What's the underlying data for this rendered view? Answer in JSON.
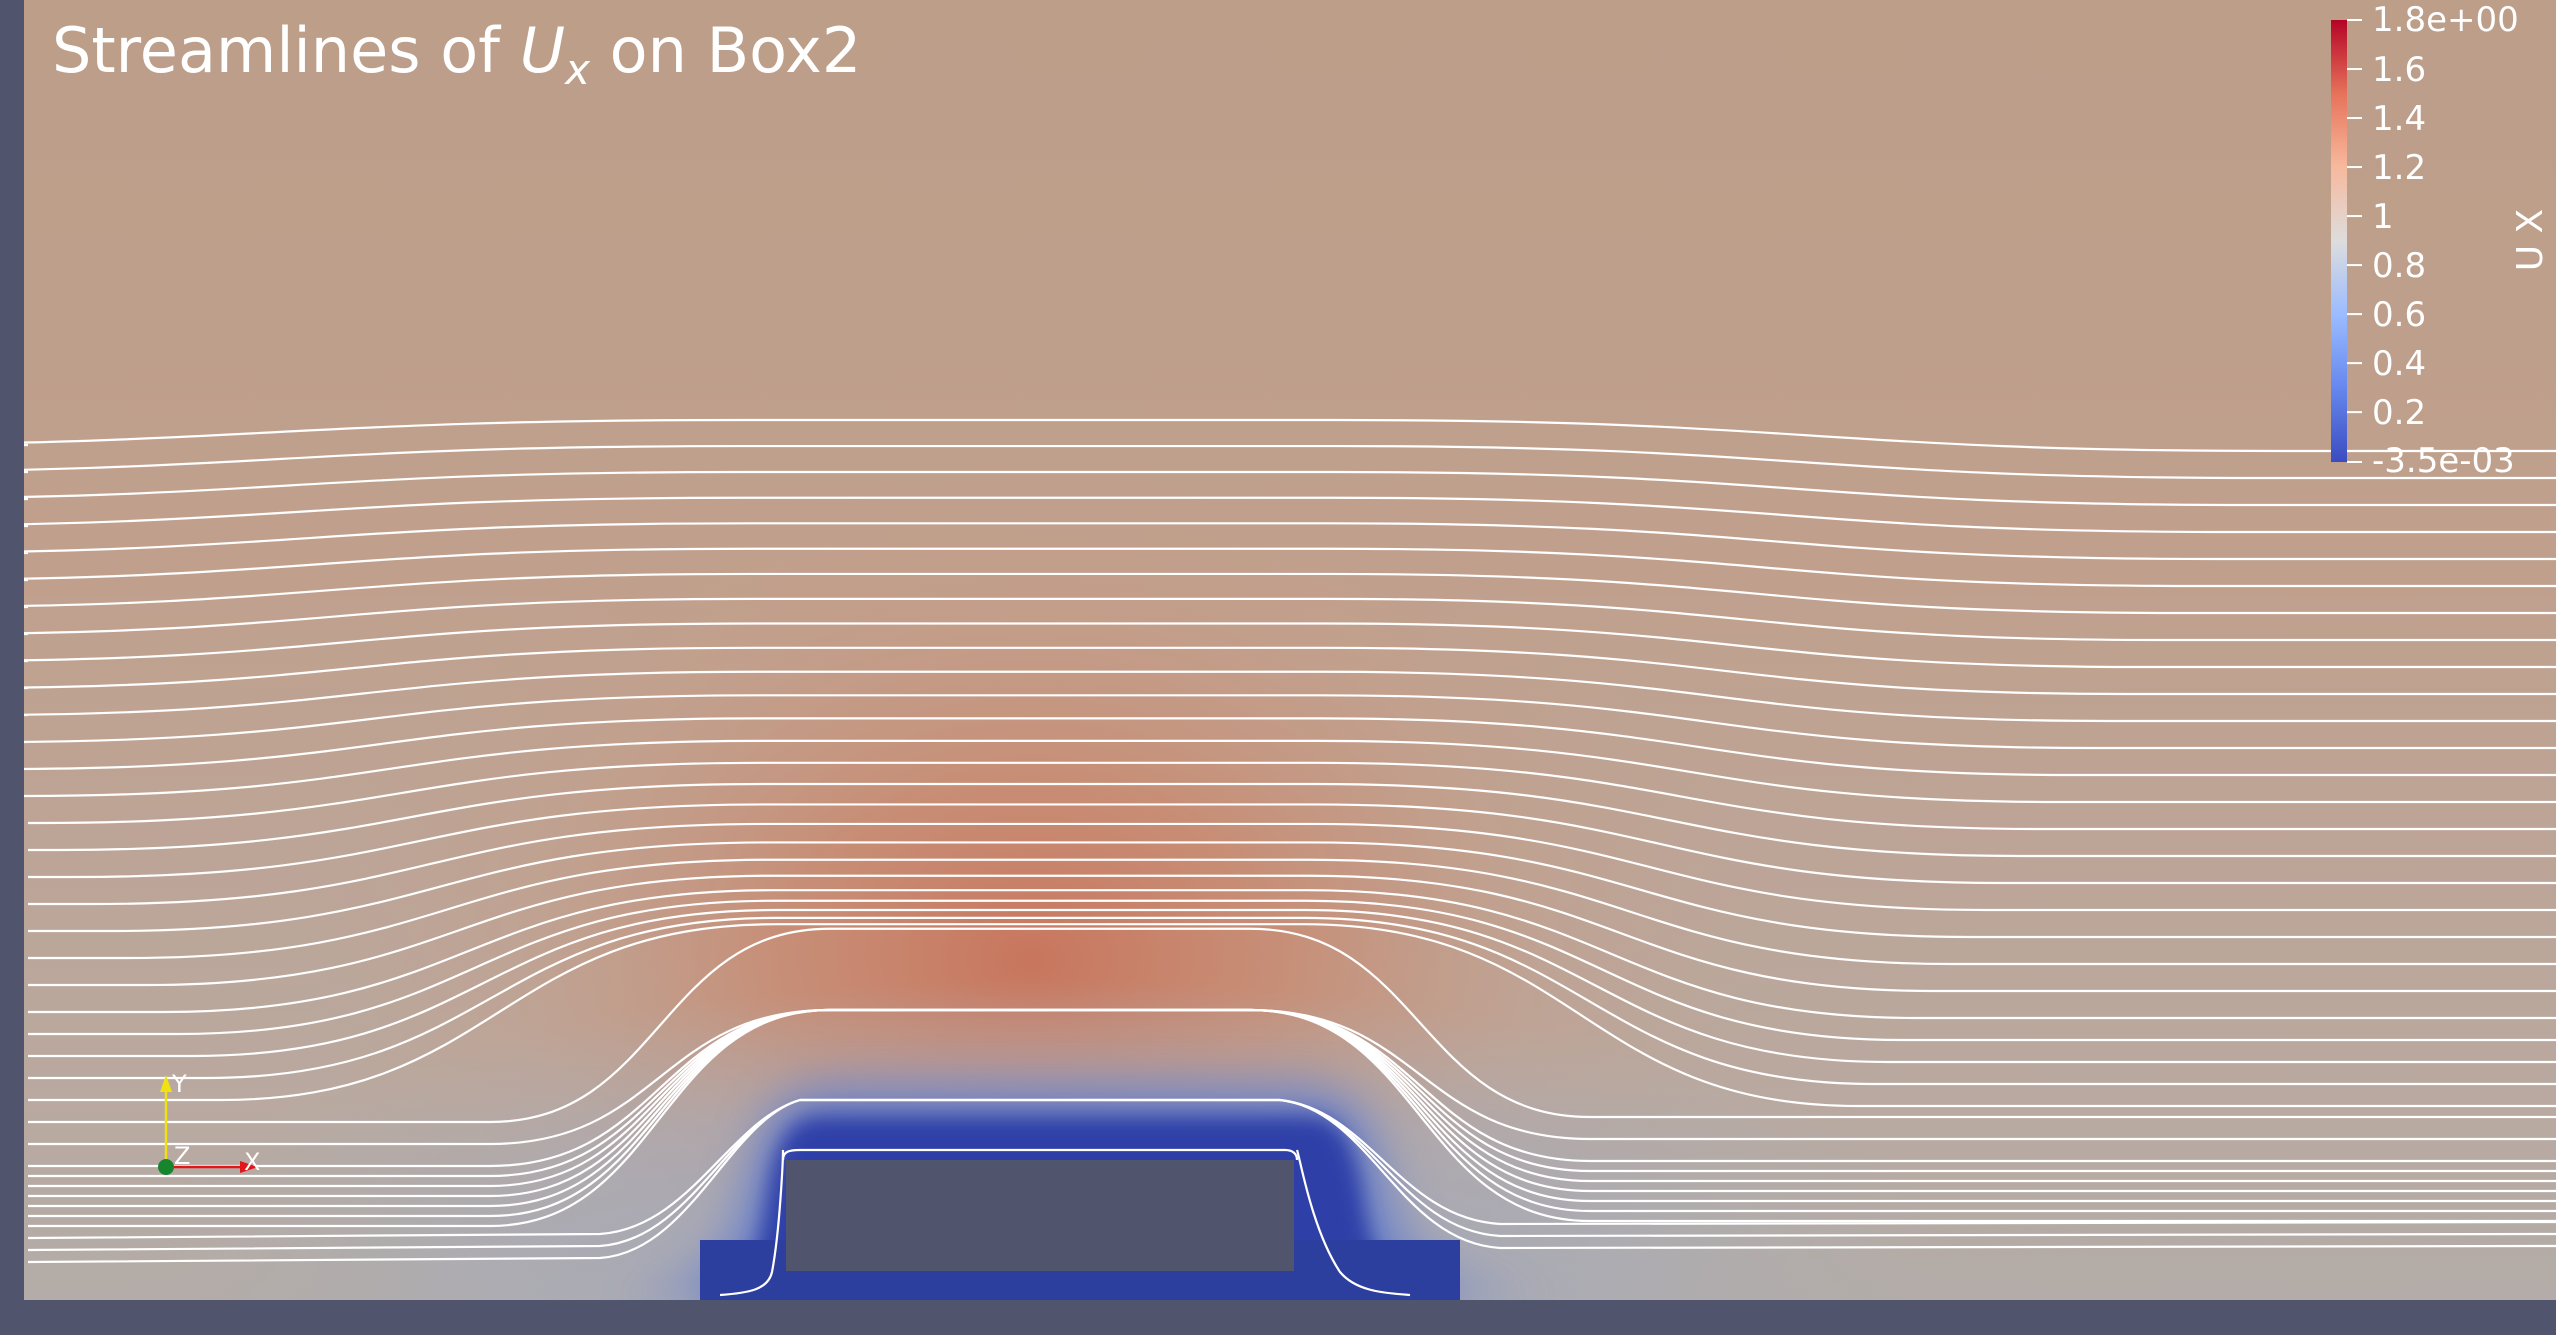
{
  "title": {
    "prefix": "Streamlines of ",
    "symbol": "U",
    "subscript": "x",
    "suffix": " on Box2"
  },
  "colorbar": {
    "label": "U X",
    "min_label": "-3.5e-03",
    "max_label": "1.8e+00",
    "ticks": [
      "1.6",
      "1.4",
      "1.2",
      "1",
      "0.8",
      "0.6",
      "0.4",
      "0.2"
    ],
    "range": [
      -0.0035,
      1.8
    ],
    "colormap": "Cool to Warm",
    "colors": [
      "#3b4cc0",
      "#7b9ff9",
      "#c0d4f5",
      "#dddddd",
      "#f2cbb7",
      "#ee8468",
      "#b40426"
    ]
  },
  "axes_triad": {
    "x_label": "X",
    "y_label": "Y",
    "z_label": "Z"
  },
  "colors": {
    "background_frame": "#50546d",
    "far_field": "#bc9e89",
    "obstacle": "#50546d",
    "streamline": "#ffffff",
    "axis_x": "#e0161b",
    "axis_y": "#f0e20e",
    "axis_z": "#16852e"
  }
}
